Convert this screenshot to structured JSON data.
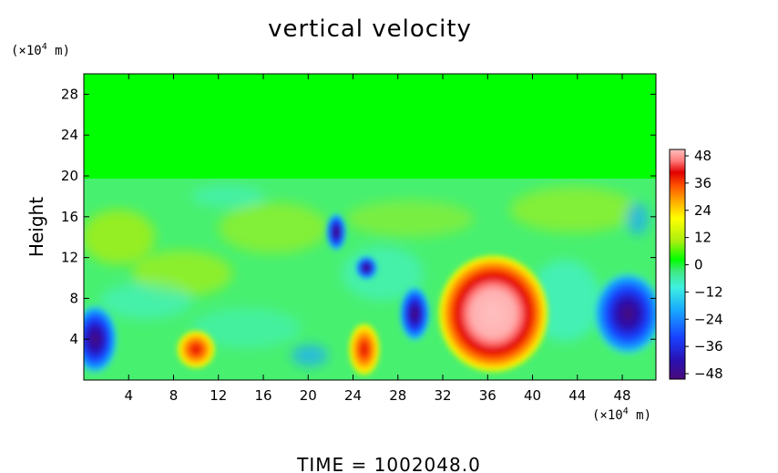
{
  "chart_data": {
    "type": "heatmap",
    "title": "vertical velocity",
    "ylabel": "Height",
    "xlabel": "",
    "x_unit_prefix": "(×10",
    "x_unit_exp": "4",
    "x_unit_suffix": " m)",
    "y_unit_prefix": "(×10",
    "y_unit_exp": "4",
    "y_unit_suffix": " m)",
    "xlim": [
      0,
      51
    ],
    "ylim": [
      0,
      30
    ],
    "x_ticks": [
      4,
      8,
      12,
      16,
      20,
      24,
      28,
      32,
      36,
      40,
      44,
      48
    ],
    "y_ticks": [
      4,
      8,
      12,
      16,
      20,
      24,
      28
    ],
    "colorbar": {
      "min": -48,
      "max": 48,
      "ticks": [
        48,
        36,
        24,
        12,
        0,
        -12,
        -24,
        -36,
        -48
      ],
      "colors": [
        "#4a0a7a",
        "#2a10b0",
        "#1840ff",
        "#18a8ff",
        "#3ff0e0",
        "#40e880",
        "#00ff00",
        "#a8ee10",
        "#ffff00",
        "#ffb000",
        "#ff5500",
        "#e00000",
        "#ff7a7a",
        "#ffc0c0"
      ]
    },
    "features": [
      {
        "name": "updraft-core",
        "x": 36.5,
        "y": 6.5,
        "value": 48
      },
      {
        "name": "updraft-small-left",
        "x": 10,
        "y": 3,
        "value": 28
      },
      {
        "name": "updraft-small-mid",
        "x": 25,
        "y": 3,
        "value": 40
      },
      {
        "name": "downdraft-left-edge",
        "x": 1,
        "y": 4,
        "value": -44
      },
      {
        "name": "downdraft-right",
        "x": 48.5,
        "y": 6.5,
        "value": -46
      },
      {
        "name": "downdraft-mid-1",
        "x": 22.5,
        "y": 14.5,
        "value": -38
      },
      {
        "name": "downdraft-mid-2",
        "x": 25.2,
        "y": 11,
        "value": -38
      },
      {
        "name": "downdraft-mid-3",
        "x": 29.5,
        "y": 6.5,
        "value": -42
      }
    ]
  },
  "footer": {
    "time_label": "TIME  =  1002048.0"
  }
}
